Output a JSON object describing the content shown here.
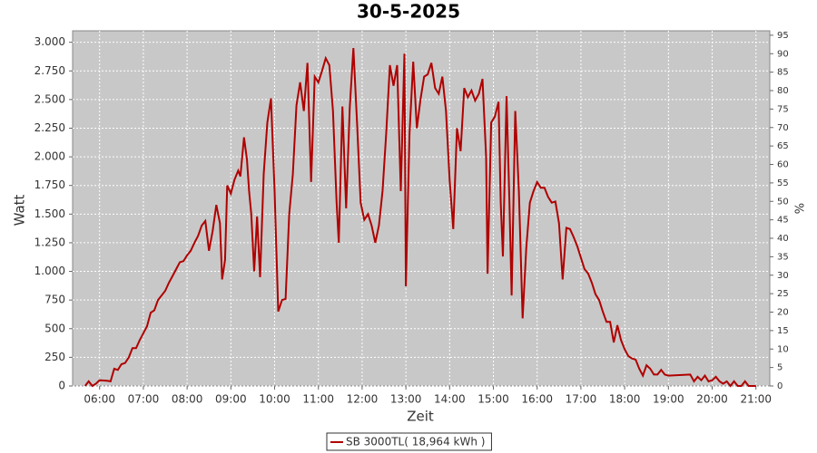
{
  "chart_data": {
    "type": "line",
    "title": "30-5-2025",
    "x_label": "Zeit",
    "y_label": "Watt",
    "y2_label": "%",
    "x": [
      340,
      345,
      350,
      355,
      360,
      370,
      375,
      380,
      385,
      390,
      395,
      400,
      405,
      410,
      415,
      420,
      425,
      430,
      435,
      440,
      445,
      450,
      455,
      460,
      465,
      470,
      475,
      480,
      485,
      490,
      495,
      500,
      505,
      510,
      515,
      520,
      525,
      528,
      532,
      535,
      540,
      545,
      550,
      553,
      558,
      562,
      565,
      568,
      572,
      576,
      580,
      585,
      590,
      595,
      600,
      605,
      610,
      615,
      620,
      625,
      630,
      635,
      640,
      645,
      650,
      655,
      660,
      665,
      670,
      675,
      680,
      685,
      688,
      693,
      698,
      703,
      708,
      713,
      718,
      723,
      728,
      733,
      738,
      743,
      748,
      753,
      758,
      763,
      768,
      773,
      778,
      780,
      785,
      790,
      795,
      800,
      805,
      810,
      815,
      820,
      825,
      830,
      835,
      840,
      845,
      850,
      855,
      860,
      865,
      870,
      875,
      880,
      885,
      890,
      892,
      897,
      902,
      907,
      910,
      913,
      918,
      922,
      925,
      930,
      935,
      940,
      945,
      950,
      955,
      960,
      965,
      970,
      975,
      980,
      985,
      990,
      995,
      1000,
      1005,
      1010,
      1015,
      1020,
      1025,
      1030,
      1035,
      1040,
      1045,
      1050,
      1055,
      1060,
      1065,
      1070,
      1075,
      1080,
      1085,
      1090,
      1095,
      1100,
      1105,
      1110,
      1115,
      1120,
      1125,
      1130,
      1135,
      1140,
      1170,
      1175,
      1180,
      1185,
      1190,
      1195,
      1200,
      1205,
      1210,
      1215,
      1220,
      1225,
      1230,
      1235,
      1240,
      1245,
      1250,
      1260
    ],
    "series": [
      {
        "name": "SB 3000TL( 18,964 kWh )",
        "color": "#b00000",
        "values": [
          0,
          40,
          0,
          20,
          50,
          45,
          40,
          150,
          140,
          190,
          200,
          250,
          330,
          330,
          400,
          460,
          520,
          640,
          660,
          750,
          790,
          830,
          900,
          960,
          1020,
          1080,
          1090,
          1140,
          1180,
          1250,
          1310,
          1400,
          1440,
          1180,
          1350,
          1580,
          1420,
          930,
          1100,
          1750,
          1680,
          1800,
          1880,
          1830,
          2170,
          1980,
          1700,
          1500,
          1000,
          1480,
          950,
          1850,
          2300,
          2510,
          1700,
          650,
          750,
          760,
          1500,
          1850,
          2450,
          2650,
          2400,
          2820,
          1780,
          2700,
          2650,
          2750,
          2860,
          2800,
          2400,
          1600,
          1250,
          2440,
          1550,
          2430,
          2950,
          2300,
          1600,
          1450,
          1500,
          1400,
          1250,
          1400,
          1700,
          2200,
          2800,
          2620,
          2800,
          1700,
          2900,
          870,
          2200,
          2830,
          2250,
          2500,
          2700,
          2720,
          2820,
          2600,
          2550,
          2700,
          2400,
          1800,
          1370,
          2250,
          2050,
          2600,
          2520,
          2580,
          2490,
          2550,
          2680,
          2000,
          980,
          2300,
          2350,
          2480,
          1600,
          1130,
          2530,
          1600,
          790,
          2400,
          1700,
          590,
          1200,
          1600,
          1700,
          1780,
          1730,
          1730,
          1650,
          1600,
          1610,
          1420,
          930,
          1380,
          1370,
          1300,
          1220,
          1120,
          1020,
          980,
          900,
          800,
          750,
          650,
          560,
          560,
          380,
          530,
          400,
          320,
          260,
          240,
          230,
          150,
          90,
          180,
          150,
          100,
          100,
          140,
          100,
          90,
          100,
          40,
          80,
          50,
          90,
          40,
          50,
          80,
          40,
          20,
          40,
          0,
          40,
          0,
          0,
          40,
          0,
          0
        ]
      }
    ],
    "xlim": [
      323,
      1279
    ],
    "xticks": [
      {
        "value": 360,
        "label": "06:00"
      },
      {
        "value": 420,
        "label": "07:00"
      },
      {
        "value": 480,
        "label": "08:00"
      },
      {
        "value": 540,
        "label": "09:00"
      },
      {
        "value": 600,
        "label": "10:00"
      },
      {
        "value": 660,
        "label": "11:00"
      },
      {
        "value": 720,
        "label": "12:00"
      },
      {
        "value": 780,
        "label": "13:00"
      },
      {
        "value": 840,
        "label": "14:00"
      },
      {
        "value": 900,
        "label": "15:00"
      },
      {
        "value": 960,
        "label": "16:00"
      },
      {
        "value": 1020,
        "label": "17:00"
      },
      {
        "value": 1080,
        "label": "18:00"
      },
      {
        "value": 1140,
        "label": "19:00"
      },
      {
        "value": 1200,
        "label": "20:00"
      },
      {
        "value": 1260,
        "label": "21:00"
      }
    ],
    "ylim": [
      0,
      3100
    ],
    "yticks": [
      0,
      250,
      500,
      750,
      {
        "value": 1000,
        "label": "1.000"
      },
      {
        "value": 1250,
        "label": "1.250"
      },
      {
        "value": 1500,
        "label": "1.500"
      },
      {
        "value": 1750,
        "label": "1.750"
      },
      {
        "value": 2000,
        "label": "2.000"
      },
      {
        "value": 2250,
        "label": "2.250"
      },
      {
        "value": 2500,
        "label": "2.500"
      },
      {
        "value": 2750,
        "label": "2.750"
      },
      {
        "value": 3000,
        "label": "3.000"
      }
    ],
    "y2lim": [
      0,
      96.2
    ],
    "y2ticks": [
      0,
      5,
      10,
      15,
      20,
      25,
      30,
      35,
      40,
      45,
      50,
      55,
      60,
      65,
      70,
      75,
      80,
      85,
      90,
      95
    ],
    "grid": true,
    "legend": "bottom",
    "background": "#c8c8c8"
  }
}
